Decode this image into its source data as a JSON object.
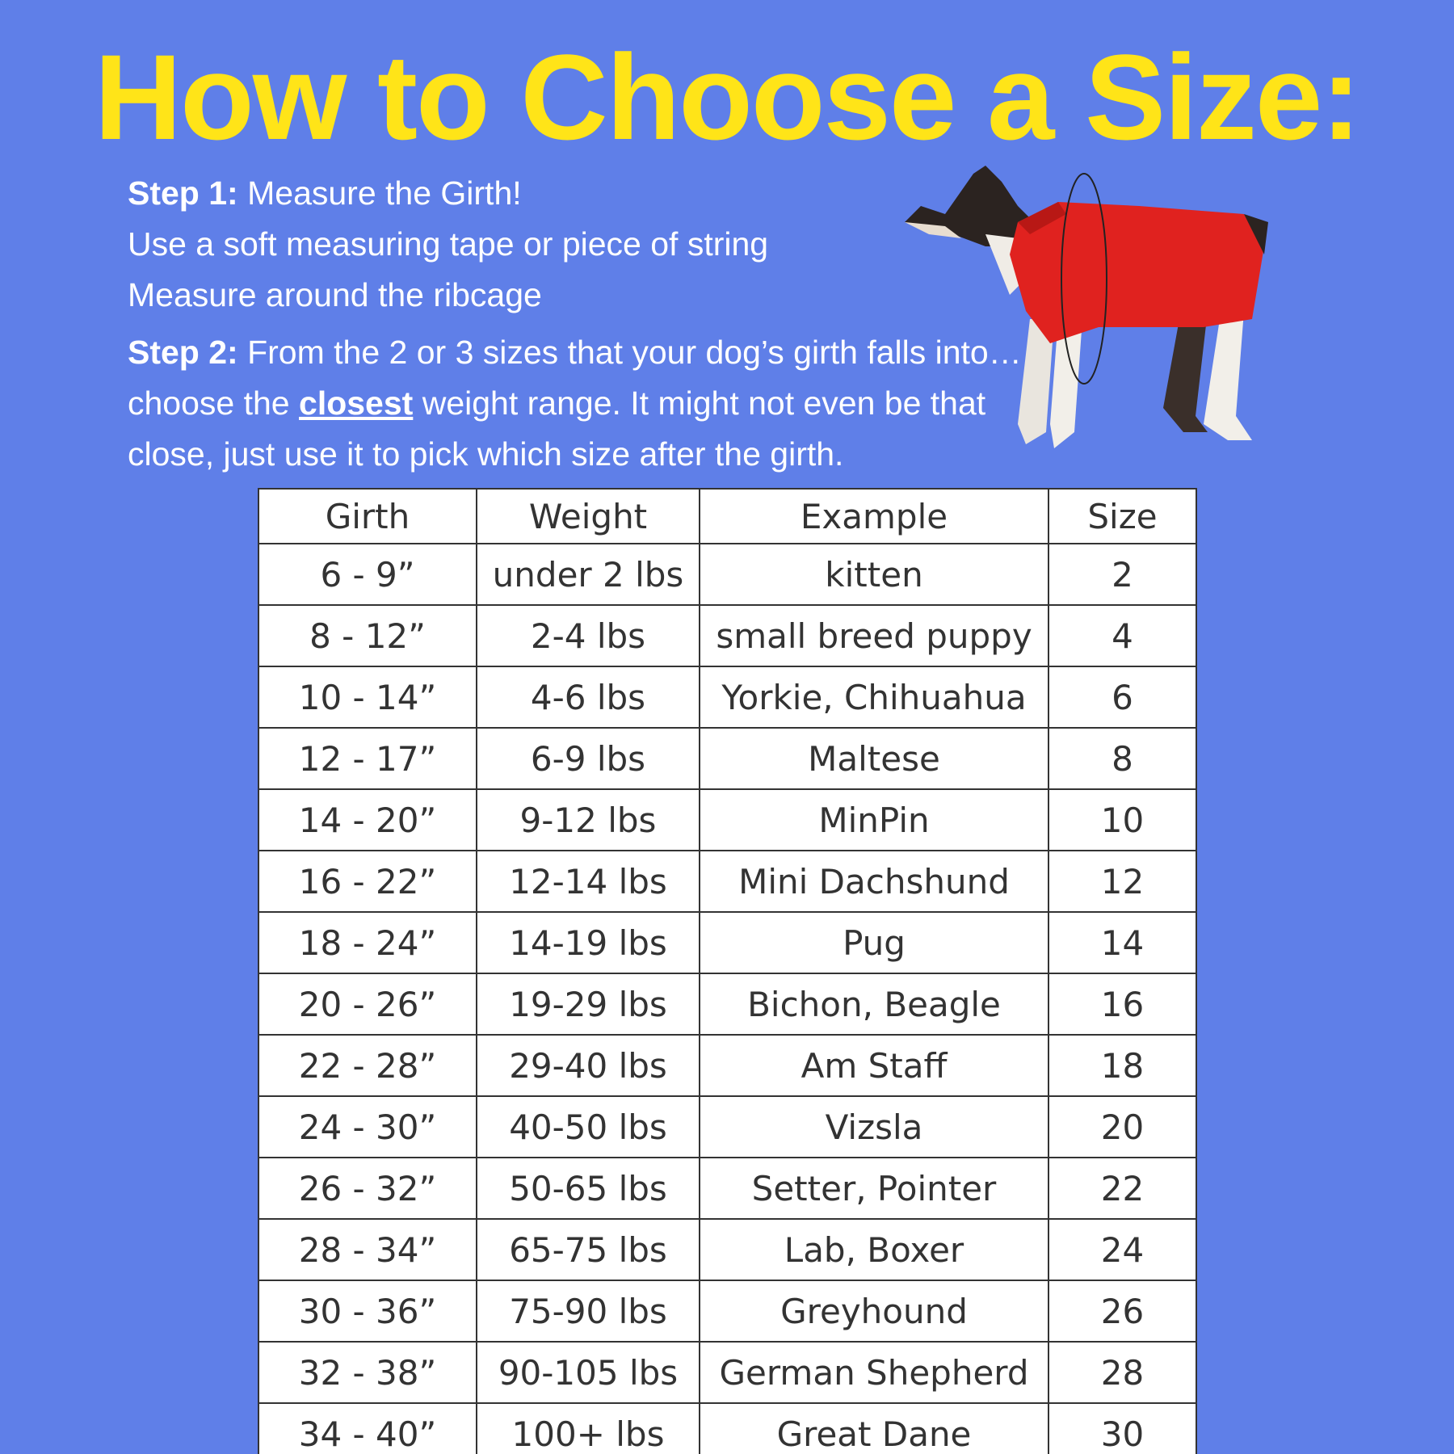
{
  "header": {
    "title": "How to Choose a Size:"
  },
  "steps": [
    {
      "label": "Step 1:",
      "lines": [
        "Measure the Girth!",
        "Use a soft measuring tape or piece of string",
        "Measure around the ribcage"
      ]
    },
    {
      "label": "Step 2:",
      "before": "From the 2 or 3 sizes that your dog’s girth falls into… choose the",
      "emphasis": "closest",
      "after": "weight range. It might not even be that close, just use it to pick which size after the girth."
    }
  ],
  "table": {
    "columns": [
      "Girth",
      "Weight",
      "Example",
      "Size"
    ],
    "rows": [
      [
        "6 - 9”",
        "under 2 lbs",
        "kitten",
        2
      ],
      [
        "8 - 12”",
        "2-4 lbs",
        "small breed puppy",
        4
      ],
      [
        "10 - 14”",
        "4-6 lbs",
        "Yorkie, Chihuahua",
        6
      ],
      [
        "12 - 17”",
        "6-9 lbs",
        "Maltese",
        8
      ],
      [
        "14 - 20”",
        "9-12 lbs",
        "MinPin",
        10
      ],
      [
        "16 - 22”",
        "12-14 lbs",
        "Mini Dachshund",
        12
      ],
      [
        "18 - 24”",
        "14-19 lbs",
        "Pug",
        14
      ],
      [
        "20 - 26”",
        "19-29 lbs",
        "Bichon, Beagle",
        16
      ],
      [
        "22 - 28”",
        "29-40 lbs",
        "Am Staff",
        18
      ],
      [
        "24 - 30”",
        "40-50 lbs",
        "Vizsla",
        20
      ],
      [
        "26 - 32”",
        "50-65 lbs",
        "Setter, Pointer",
        22
      ],
      [
        "28 - 34”",
        "65-75 lbs",
        "Lab, Boxer",
        24
      ],
      [
        "30 - 36”",
        "75-90 lbs",
        "Greyhound",
        26
      ],
      [
        "32 - 38”",
        "90-105 lbs",
        "German Shepherd",
        28
      ],
      [
        "34 - 40”",
        "100+ lbs",
        "Great Dane",
        30
      ]
    ]
  }
}
